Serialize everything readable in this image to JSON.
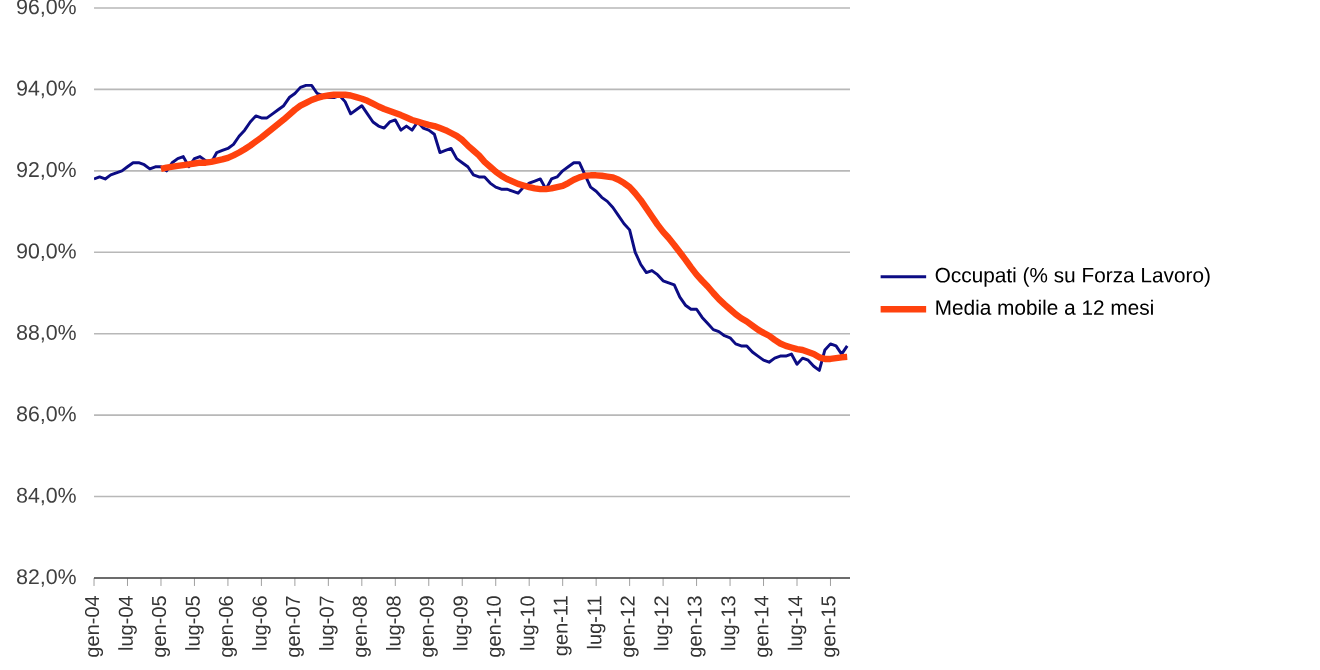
{
  "chart_data": {
    "type": "line",
    "categories": [
      "gen-04",
      null,
      null,
      null,
      null,
      null,
      "lug-04",
      null,
      null,
      null,
      null,
      null,
      "gen-05",
      null,
      null,
      null,
      null,
      null,
      "lug-05",
      null,
      null,
      null,
      null,
      null,
      "gen-06",
      null,
      null,
      null,
      null,
      null,
      "lug-06",
      null,
      null,
      null,
      null,
      null,
      "gen-07",
      null,
      null,
      null,
      null,
      null,
      "lug-07",
      null,
      null,
      null,
      null,
      null,
      "gen-08",
      null,
      null,
      null,
      null,
      null,
      "lug-08",
      null,
      null,
      null,
      null,
      null,
      "gen-09",
      null,
      null,
      null,
      null,
      null,
      "lug-09",
      null,
      null,
      null,
      null,
      null,
      "gen-10",
      null,
      null,
      null,
      null,
      null,
      "lug-10",
      null,
      null,
      null,
      null,
      null,
      "gen-11",
      null,
      null,
      null,
      null,
      null,
      "lug-11",
      null,
      null,
      null,
      null,
      null,
      "gen-12",
      null,
      null,
      null,
      null,
      null,
      "lug-12",
      null,
      null,
      null,
      null,
      null,
      "gen-13",
      null,
      null,
      null,
      null,
      null,
      "lug-13",
      null,
      null,
      null,
      null,
      null,
      "gen-14",
      null,
      null,
      null,
      null,
      null,
      "lug-14",
      null,
      null,
      null,
      null,
      null,
      "gen-15",
      null,
      null,
      null
    ],
    "series": [
      {
        "name": "Occupati (% su Forza Lavoro)",
        "color": "#0c0c84",
        "values": [
          91.8,
          91.85,
          91.8,
          91.9,
          91.95,
          92.0,
          92.1,
          92.2,
          92.2,
          92.15,
          92.05,
          92.1,
          92.1,
          92.0,
          92.2,
          92.3,
          92.35,
          92.1,
          92.3,
          92.35,
          92.25,
          92.2,
          92.45,
          92.5,
          92.55,
          92.65,
          92.85,
          93.0,
          93.2,
          93.35,
          93.3,
          93.3,
          93.4,
          93.5,
          93.6,
          93.8,
          93.9,
          94.05,
          94.1,
          94.1,
          93.9,
          93.85,
          93.8,
          93.8,
          93.85,
          93.7,
          93.4,
          93.5,
          93.6,
          93.4,
          93.2,
          93.1,
          93.05,
          93.2,
          93.25,
          93.0,
          93.1,
          93.0,
          93.2,
          93.05,
          93.0,
          92.9,
          92.45,
          92.5,
          92.55,
          92.3,
          92.2,
          92.1,
          91.9,
          91.85,
          91.85,
          91.7,
          91.6,
          91.55,
          91.55,
          91.5,
          91.45,
          91.6,
          91.7,
          91.75,
          91.8,
          91.55,
          91.8,
          91.85,
          92.0,
          92.1,
          92.2,
          92.2,
          91.9,
          91.6,
          91.5,
          91.35,
          91.25,
          91.1,
          90.9,
          90.7,
          90.55,
          90.0,
          89.7,
          89.5,
          89.55,
          89.45,
          89.3,
          89.25,
          89.2,
          88.9,
          88.7,
          88.6,
          88.6,
          88.4,
          88.25,
          88.1,
          88.05,
          87.95,
          87.9,
          87.75,
          87.7,
          87.7,
          87.55,
          87.45,
          87.35,
          87.3,
          87.4,
          87.45,
          87.45,
          87.5,
          87.25,
          87.4,
          87.35,
          87.2,
          87.1,
          87.6,
          87.75,
          87.7,
          87.5,
          87.7
        ]
      },
      {
        "name": "Media mobile a 12 mesi",
        "color": "#ff420e",
        "values": [
          null,
          null,
          null,
          null,
          null,
          null,
          null,
          null,
          null,
          null,
          null,
          null,
          92.05,
          92.08,
          92.1,
          92.12,
          92.14,
          92.16,
          92.18,
          92.2,
          92.2,
          92.22,
          92.25,
          92.28,
          92.32,
          92.38,
          92.45,
          92.53,
          92.62,
          92.72,
          92.82,
          92.93,
          93.04,
          93.15,
          93.26,
          93.38,
          93.5,
          93.6,
          93.67,
          93.74,
          93.79,
          93.83,
          93.85,
          93.87,
          93.87,
          93.87,
          93.85,
          93.81,
          93.77,
          93.72,
          93.65,
          93.58,
          93.52,
          93.47,
          93.42,
          93.37,
          93.31,
          93.25,
          93.21,
          93.17,
          93.13,
          93.1,
          93.05,
          93.0,
          92.93,
          92.86,
          92.76,
          92.62,
          92.5,
          92.38,
          92.22,
          92.1,
          91.98,
          91.88,
          91.8,
          91.74,
          91.68,
          91.64,
          91.6,
          91.57,
          91.55,
          91.55,
          91.57,
          91.6,
          91.63,
          91.7,
          91.78,
          91.84,
          91.88,
          91.89,
          91.89,
          91.88,
          91.86,
          91.84,
          91.78,
          91.7,
          91.6,
          91.45,
          91.28,
          91.08,
          90.88,
          90.68,
          90.5,
          90.35,
          90.18,
          90.0,
          89.82,
          89.63,
          89.45,
          89.3,
          89.16,
          89.0,
          88.85,
          88.72,
          88.6,
          88.48,
          88.38,
          88.3,
          88.2,
          88.1,
          88.02,
          87.95,
          87.85,
          87.76,
          87.7,
          87.66,
          87.62,
          87.6,
          87.55,
          87.5,
          87.42,
          87.38,
          87.38,
          87.4,
          87.42,
          87.43
        ]
      }
    ],
    "ylim": [
      82,
      96
    ],
    "yticks": [
      {
        "value": 82,
        "label": "82,0%"
      },
      {
        "value": 84,
        "label": "84,0%"
      },
      {
        "value": 86,
        "label": "86,0%"
      },
      {
        "value": 88,
        "label": "88,0%"
      },
      {
        "value": 90,
        "label": "90,0%"
      },
      {
        "value": 92,
        "label": "92,0%"
      },
      {
        "value": 94,
        "label": "94,0%"
      },
      {
        "value": 96,
        "label": "96,0%"
      }
    ],
    "grid": "y",
    "legend": "right",
    "marker": "none",
    "line_style": "solid"
  }
}
